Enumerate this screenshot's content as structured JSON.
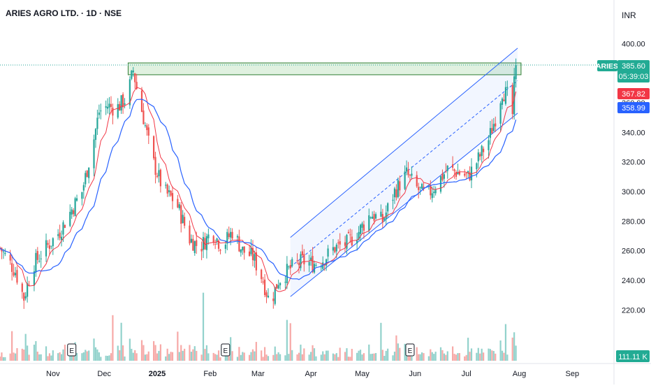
{
  "chart_header": {
    "symbol_line": "ARIES AGRO LTD. · 1D · NSE",
    "currency": "INR"
  },
  "price_scale": {
    "ticks": [
      "400.00",
      "380.00",
      "360.00",
      "340.00",
      "320.00",
      "300.00",
      "280.00",
      "260.00",
      "240.00",
      "220.00"
    ]
  },
  "time_scale": {
    "ticks": [
      "Nov",
      "Dec",
      "2025",
      "Feb",
      "Mar",
      "Apr",
      "May",
      "Jun",
      "Jul",
      "Aug",
      "Sep"
    ]
  },
  "badges": {
    "symbol": "ARIES",
    "last_price": "385.60",
    "countdown": "05:39:03",
    "ma_red_value": "367.82",
    "ma_blue_value": "358.99",
    "volume_value": "111.11 K",
    "earnings_marker": "E"
  },
  "colors": {
    "up": "#26a69a",
    "down": "#ef5350",
    "ma_fast": "#f23645",
    "ma_slow": "#2962ff",
    "channel": "#2962ff",
    "zone_fill": "#a5d6a7",
    "zone_border": "#2e7d32",
    "badge_green": "#22ab94",
    "badge_red": "#f23645",
    "badge_blue": "#2962ff"
  },
  "chart_data": {
    "type": "candlestick",
    "symbol": "ARIES AGRO LTD.",
    "interval": "1D",
    "exchange": "NSE",
    "currency": "INR",
    "ylim": [
      205,
      413
    ],
    "x_range": [
      "2024-10-01",
      "2025-09-25"
    ],
    "grid": false,
    "last_price": 385.6,
    "moving_averages": [
      {
        "color": "red",
        "last_value": 367.82
      },
      {
        "color": "blue",
        "last_value": 358.99
      }
    ],
    "resistance_zone": [
      379,
      387
    ],
    "channel": {
      "upper": [
        [
          "2025-03-20",
          269
        ],
        [
          "2025-07-31",
          397
        ]
      ],
      "lower": [
        [
          "2025-03-20",
          229
        ],
        [
          "2025-07-31",
          353
        ]
      ]
    },
    "earnings_dates": [
      "2024-11-12",
      "2025-02-10",
      "2025-05-29"
    ],
    "close_series": [
      [
        "2024-10-01",
        262
      ],
      [
        "2024-10-10",
        246
      ],
      [
        "2024-10-15",
        228
      ],
      [
        "2024-10-20",
        250
      ],
      [
        "2024-10-28",
        262
      ],
      [
        "2024-11-05",
        273
      ],
      [
        "2024-11-12",
        288
      ],
      [
        "2024-11-18",
        300
      ],
      [
        "2024-11-24",
        330
      ],
      [
        "2024-11-28",
        354
      ],
      [
        "2024-12-03",
        358
      ],
      [
        "2024-12-08",
        356
      ],
      [
        "2024-12-13",
        362
      ],
      [
        "2024-12-16",
        372
      ],
      [
        "2024-12-18",
        382
      ],
      [
        "2024-12-20",
        370
      ],
      [
        "2024-12-24",
        350
      ],
      [
        "2024-12-29",
        322
      ],
      [
        "2025-01-05",
        300
      ],
      [
        "2025-01-12",
        293
      ],
      [
        "2025-01-20",
        268
      ],
      [
        "2025-01-26",
        262
      ],
      [
        "2025-02-02",
        273
      ],
      [
        "2025-02-08",
        263
      ],
      [
        "2025-02-14",
        273
      ],
      [
        "2025-02-20",
        260
      ],
      [
        "2025-02-26",
        256
      ],
      [
        "2025-03-04",
        240
      ],
      [
        "2025-03-08",
        224
      ],
      [
        "2025-03-13",
        240
      ],
      [
        "2025-03-20",
        248
      ],
      [
        "2025-03-27",
        253
      ],
      [
        "2025-04-02",
        251
      ],
      [
        "2025-04-08",
        254
      ],
      [
        "2025-04-15",
        262
      ],
      [
        "2025-04-22",
        265
      ],
      [
        "2025-04-29",
        273
      ],
      [
        "2025-05-06",
        285
      ],
      [
        "2025-05-13",
        280
      ],
      [
        "2025-05-20",
        300
      ],
      [
        "2025-05-27",
        312
      ],
      [
        "2025-06-02",
        302
      ],
      [
        "2025-06-08",
        297
      ],
      [
        "2025-06-14",
        306
      ],
      [
        "2025-06-20",
        315
      ],
      [
        "2025-06-26",
        313
      ],
      [
        "2025-07-02",
        310
      ],
      [
        "2025-07-08",
        322
      ],
      [
        "2025-07-14",
        335
      ],
      [
        "2025-07-18",
        350
      ],
      [
        "2025-07-22",
        368
      ],
      [
        "2025-07-26",
        364
      ],
      [
        "2025-07-28",
        352
      ],
      [
        "2025-07-29",
        372
      ],
      [
        "2025-07-30",
        385.6
      ]
    ]
  }
}
